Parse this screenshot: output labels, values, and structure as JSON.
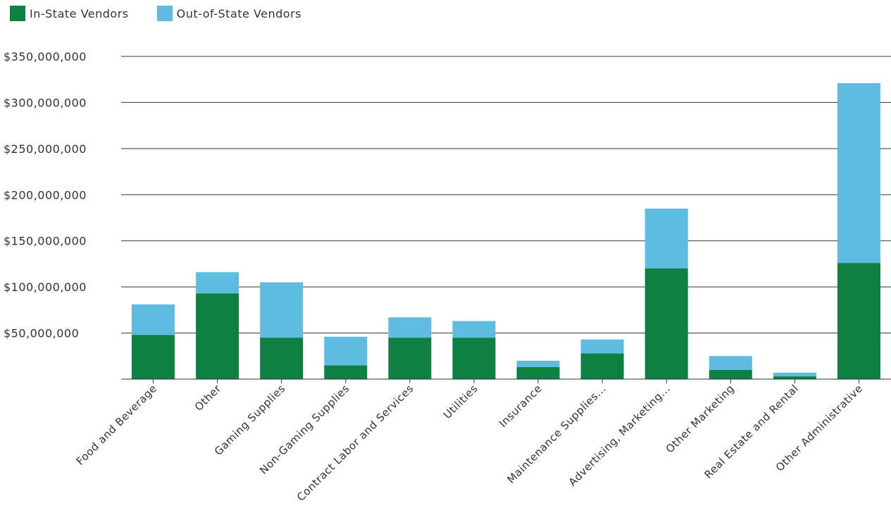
{
  "chart_data": {
    "type": "bar",
    "stacked": true,
    "title": "",
    "xlabel": "",
    "ylabel": "",
    "ylim": [
      0,
      350000000
    ],
    "y_ticks": [
      {
        "value": 50000000,
        "label": "$50,000,000"
      },
      {
        "value": 100000000,
        "label": "$100,000,000"
      },
      {
        "value": 150000000,
        "label": "$150,000,000"
      },
      {
        "value": 200000000,
        "label": "$200,000,000"
      },
      {
        "value": 250000000,
        "label": "$250,000,000"
      },
      {
        "value": 300000000,
        "label": "$300,000,000"
      },
      {
        "value": 350000000,
        "label": "$350,000,000"
      }
    ],
    "grid": true,
    "legend_position": "top-left",
    "categories": [
      "Food and Beverage",
      "Other",
      "Gaming Supplies",
      "Non-Gaming Supplies",
      "Contract Labor and Services",
      "Utilities",
      "Insurance",
      "Maintenance Supplies...",
      "Advertising, Marketing...",
      "Other Marketing",
      "Real Estate and Rental",
      "Other Administrative"
    ],
    "series": [
      {
        "name": "In-State Vendors",
        "color": "#0e8142",
        "values": [
          48000000,
          93000000,
          45000000,
          15000000,
          45000000,
          45000000,
          13000000,
          28000000,
          120000000,
          10000000,
          3000000,
          126000000
        ]
      },
      {
        "name": "Out-of-State Vendors",
        "color": "#5fbbe0",
        "values": [
          33000000,
          23000000,
          60000000,
          31000000,
          22000000,
          18000000,
          7000000,
          15000000,
          65000000,
          15000000,
          4000000,
          195000000
        ]
      }
    ]
  }
}
